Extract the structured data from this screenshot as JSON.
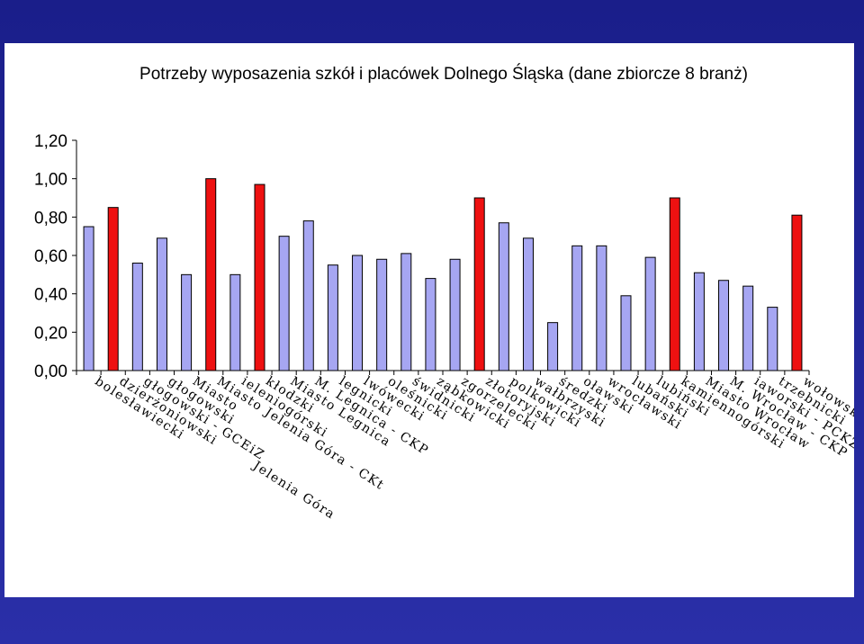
{
  "colors": {
    "background": "#1b1f8c",
    "panel": "#ffffff",
    "bar_regular": "#a6a6f2",
    "bar_highlight": "#ee1111",
    "bar_outline": "#000000"
  },
  "chart_data": {
    "type": "bar",
    "title": "Potrzeby wyposazenia szkół i placówek Dolnego Śląska (dane zbiorcze 8 branż)",
    "xlabel": "",
    "ylabel": "",
    "ylim": [
      0,
      1.2
    ],
    "yticks": [
      "0,00",
      "0,20",
      "0,40",
      "0,60",
      "0,80",
      "1,00",
      "1,20"
    ],
    "grid": false,
    "legend": "none",
    "categories": [
      "bolesławiecki",
      "dzierżoniowski",
      "głogowski - GCEiZ",
      "głogowski",
      "Miasto",
      "Miasto Jelenia Góra - CKt",
      "ieleniogórski",
      "kłodzki",
      "Miasto Legnica",
      "M. Legnica - CKP",
      "legnicki",
      "lwówecki",
      "oleśnicki",
      "świdnicki",
      "ząbkowicki",
      "zgorzelecki",
      "złotoryjski",
      "polkowicki",
      "wałbrzyski",
      "średzki",
      "oławski",
      "wrocławski",
      "lubański",
      "lubiński",
      "kamiennogórski",
      "Miasto Wrocław",
      "M. Wrocław - CKP",
      "iaworski - PCKZ",
      "trzebnicki",
      "wołowski"
    ],
    "extra_labels": [
      "Jelenia Góra"
    ],
    "values": [
      0.75,
      0.85,
      0.56,
      0.69,
      0.5,
      1.0,
      0.5,
      0.97,
      0.7,
      0.78,
      0.55,
      0.6,
      0.58,
      0.61,
      0.48,
      0.58,
      0.9,
      0.77,
      0.69,
      0.25,
      0.65,
      0.65,
      0.39,
      0.59,
      0.9,
      0.51,
      0.47,
      0.44,
      0.33,
      0.81
    ],
    "highlight": [
      false,
      true,
      false,
      false,
      false,
      true,
      false,
      true,
      false,
      false,
      false,
      false,
      false,
      false,
      false,
      false,
      true,
      false,
      false,
      false,
      false,
      false,
      false,
      false,
      true,
      false,
      false,
      false,
      false,
      true
    ]
  }
}
